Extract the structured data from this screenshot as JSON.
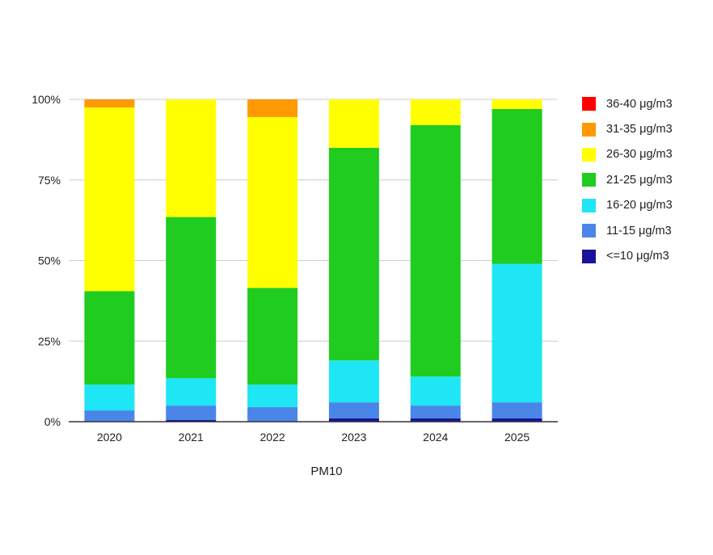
{
  "chart_data": {
    "type": "bar",
    "stacked": "percent",
    "title": "",
    "xlabel": "PM10",
    "ylabel": "",
    "ylim": [
      0,
      100
    ],
    "yticks": [
      "0%",
      "25%",
      "50%",
      "75%",
      "100%"
    ],
    "ytick_values": [
      0,
      25,
      50,
      75,
      100
    ],
    "grid": true,
    "legend_position": "right",
    "categories": [
      "2020",
      "2021",
      "2022",
      "2023",
      "2024",
      "2025"
    ],
    "series": [
      {
        "name": "<=10 μg/m3",
        "color": "#1a1299",
        "values": [
          0.0,
          0.5,
          0.0,
          1.0,
          1.0,
          1.0
        ]
      },
      {
        "name": "11-15 μg/m3",
        "color": "#4a86e8",
        "values": [
          3.5,
          4.5,
          4.5,
          5.0,
          4.0,
          5.0
        ]
      },
      {
        "name": "16-20 μg/m3",
        "color": "#1ee6f5",
        "values": [
          8.0,
          8.5,
          7.0,
          13.0,
          9.0,
          43.0
        ]
      },
      {
        "name": "21-25 μg/m3",
        "color": "#1fcc1f",
        "values": [
          29.0,
          50.0,
          30.0,
          66.0,
          78.0,
          48.0
        ]
      },
      {
        "name": "26-30 μg/m3",
        "color": "#ffff00",
        "values": [
          57.0,
          36.5,
          53.0,
          15.0,
          8.0,
          3.0
        ]
      },
      {
        "name": "31-35 μg/m3",
        "color": "#ff9900",
        "values": [
          2.5,
          0.0,
          5.5,
          0.0,
          0.0,
          0.0
        ]
      },
      {
        "name": "36-40 μg/m3",
        "color": "#ff0000",
        "values": [
          0.0,
          0.0,
          0.0,
          0.0,
          0.0,
          0.0
        ]
      }
    ]
  }
}
